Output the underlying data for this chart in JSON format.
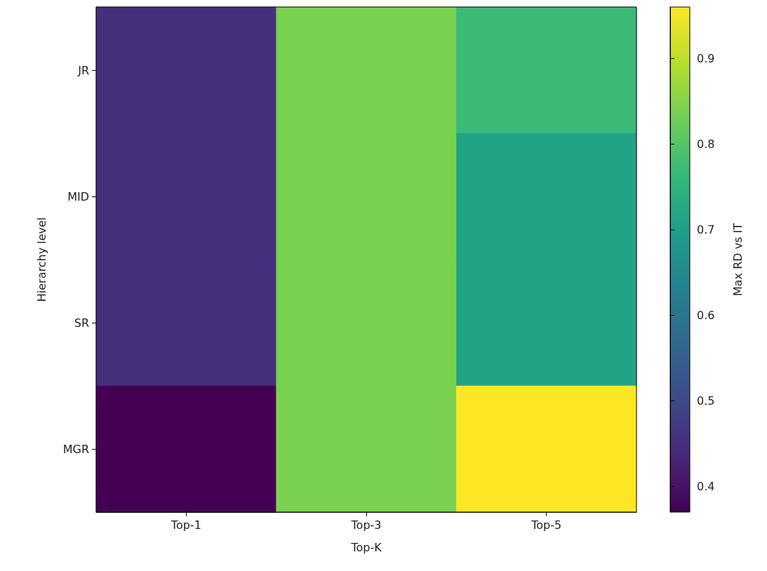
{
  "chart_data": {
    "type": "heatmap",
    "xlabel": "Top-K",
    "ylabel": "Hierarchy level",
    "clabel": "Max RD vs IT",
    "categories": [
      "Top-1",
      "Top-3",
      "Top-5"
    ],
    "y_categories": [
      "JR",
      "MID",
      "SR",
      "MGR"
    ],
    "cells": [
      [
        0.45,
        0.84,
        0.77
      ],
      [
        0.45,
        0.84,
        0.71
      ],
      [
        0.45,
        0.84,
        0.71
      ],
      [
        0.37,
        0.84,
        0.96
      ]
    ],
    "clim": [
      0.37,
      0.96
    ],
    "cticks": [
      0.4,
      0.5,
      0.6,
      0.7,
      0.8,
      0.9
    ]
  }
}
